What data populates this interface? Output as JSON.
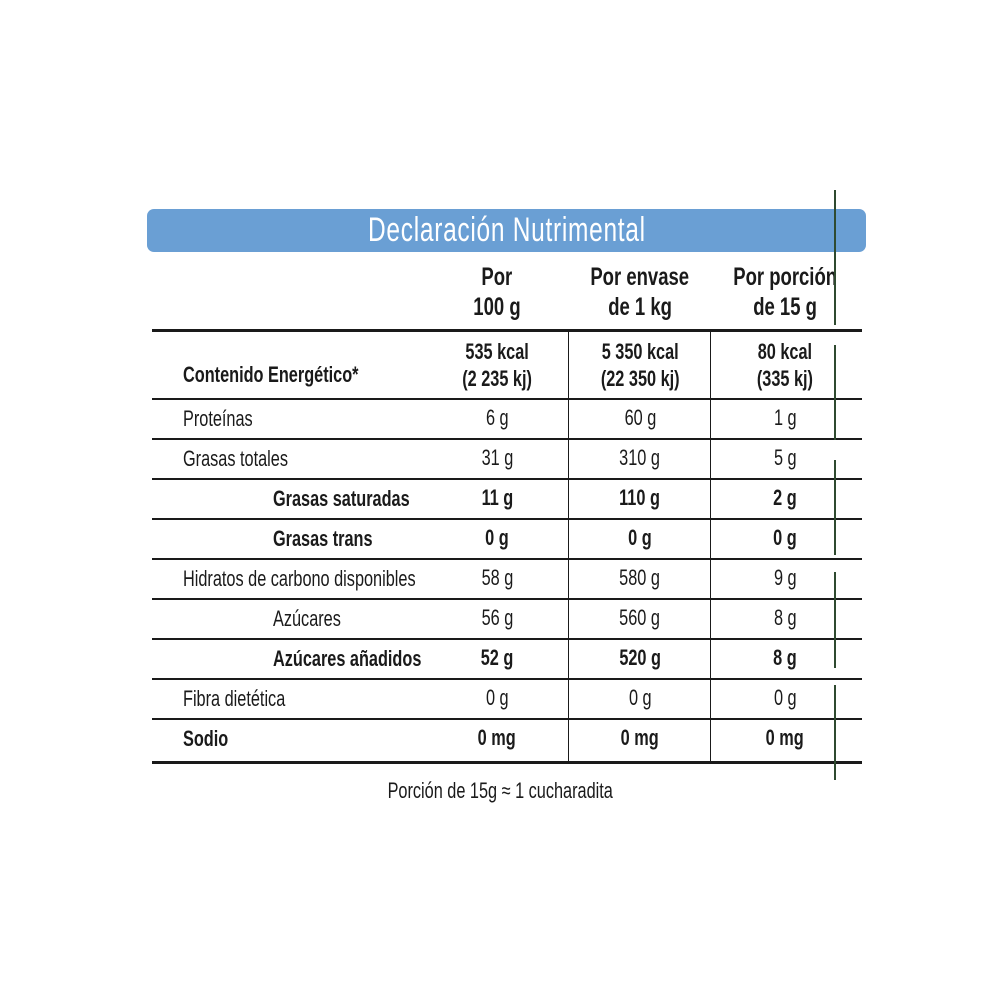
{
  "title": "Declaración Nutrimental",
  "columns": [
    {
      "line1": "Por",
      "line2": "100 g"
    },
    {
      "line1": "Por envase",
      "line2": "de 1 kg"
    },
    {
      "line1": "Por porción",
      "line2": "de 15 g"
    }
  ],
  "rows": [
    {
      "label": "Contenido Energético*",
      "bold": true,
      "indent": false,
      "values": [
        "535 kcal\n(2 235 kj)",
        "5 350 kcal\n(22 350 kj)",
        "80 kcal\n(335 kj)"
      ]
    },
    {
      "label": "Proteínas",
      "bold": false,
      "indent": false,
      "values": [
        "6 g",
        "60 g",
        "1 g"
      ]
    },
    {
      "label": "Grasas totales",
      "bold": false,
      "indent": false,
      "values": [
        "31 g",
        "310 g",
        "5 g"
      ]
    },
    {
      "label": "Grasas saturadas",
      "bold": true,
      "indent": true,
      "values": [
        "11 g",
        "110 g",
        "2 g"
      ]
    },
    {
      "label": "Grasas trans",
      "bold": true,
      "indent": true,
      "values": [
        "0 g",
        "0 g",
        "0 g"
      ]
    },
    {
      "label": "Hidratos de carbono disponibles",
      "bold": false,
      "indent": false,
      "values": [
        "58 g",
        "580 g",
        "9 g"
      ]
    },
    {
      "label": "Azúcares",
      "bold": false,
      "indent": true,
      "values": [
        "56 g",
        "560 g",
        "8 g"
      ]
    },
    {
      "label": "Azúcares añadidos",
      "bold": true,
      "indent": true,
      "values": [
        "52 g",
        "520 g",
        "8 g"
      ]
    },
    {
      "label": "Fibra dietética",
      "bold": false,
      "indent": false,
      "values": [
        "0 g",
        "0 g",
        "0 g"
      ]
    },
    {
      "label": "Sodio",
      "bold": true,
      "indent": false,
      "values": [
        "0 mg",
        "0 mg",
        "0 mg"
      ]
    }
  ],
  "footnote": "Porción de 15g ≈ 1 cucharadita",
  "colors": {
    "banner": "#6a9fd4",
    "side_line": "#2f4a30"
  }
}
